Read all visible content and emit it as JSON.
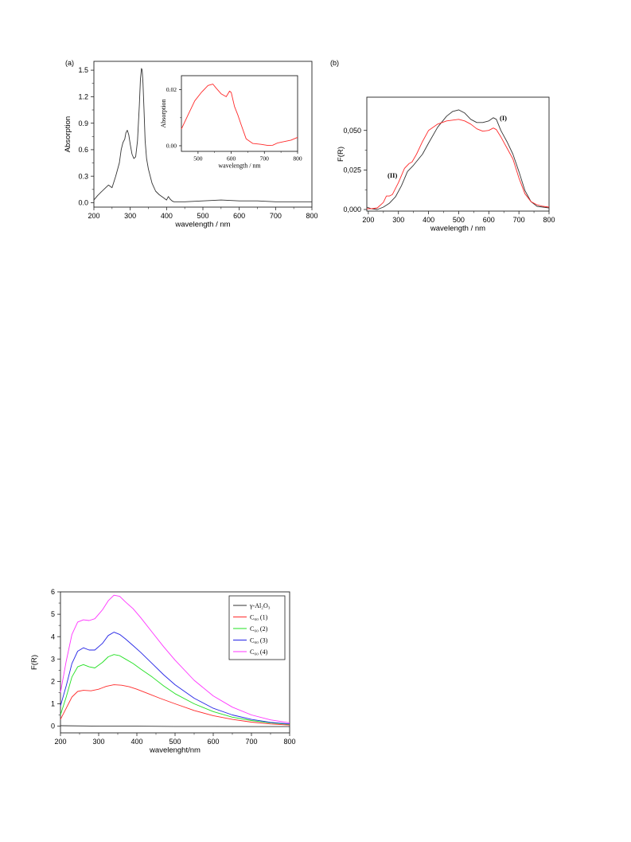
{
  "colors": {
    "black": "#333333",
    "red": "#ff2a2a",
    "green": "#22e022",
    "blue": "#2424e6",
    "magenta": "#ff33ff"
  },
  "chart_data": [
    {
      "id": "a",
      "panel_label": "(a)",
      "type": "line",
      "xlabel": "wavelength / nm",
      "ylabel": "Absorption",
      "xlim": [
        200,
        800
      ],
      "ylim": [
        -0.05,
        1.6
      ],
      "xticks": [
        "200",
        "300",
        "400",
        "500",
        "600",
        "700",
        "800"
      ],
      "yticks": [
        "0.0",
        "0.3",
        "0.6",
        "0.9",
        "1.2",
        "1.5"
      ],
      "series": [
        {
          "color": "#333333",
          "x": [
            200,
            210,
            220,
            230,
            240,
            250,
            260,
            270,
            275,
            280,
            285,
            288,
            292,
            296,
            300,
            305,
            310,
            315,
            320,
            325,
            328,
            331,
            333,
            335,
            338,
            341,
            345,
            350,
            360,
            370,
            380,
            390,
            400,
            405,
            410,
            415,
            420,
            430,
            450,
            500,
            550,
            600,
            650,
            700,
            750,
            800
          ],
          "y": [
            0.03,
            0.08,
            0.12,
            0.16,
            0.2,
            0.17,
            0.3,
            0.45,
            0.6,
            0.68,
            0.72,
            0.79,
            0.82,
            0.77,
            0.66,
            0.55,
            0.5,
            0.52,
            0.7,
            1.1,
            1.4,
            1.52,
            1.5,
            1.35,
            1.05,
            0.7,
            0.5,
            0.38,
            0.22,
            0.13,
            0.09,
            0.06,
            0.03,
            0.07,
            0.04,
            0.02,
            0.01,
            0.01,
            0.01,
            0.02,
            0.03,
            0.02,
            0.02,
            0.01,
            0.01,
            0.01
          ]
        }
      ]
    },
    {
      "id": "a-inset",
      "type": "line",
      "xlabel": "wavelength / nm",
      "ylabel": "Absorption",
      "xlim": [
        450,
        800
      ],
      "ylim": [
        -0.002,
        0.025
      ],
      "xticks": [
        "500",
        "600",
        "700",
        "800"
      ],
      "yticks": [
        "0.00",
        "0.02"
      ],
      "series": [
        {
          "color": "#ff2a2a",
          "x": [
            450,
            470,
            490,
            510,
            530,
            545,
            555,
            570,
            585,
            595,
            600,
            610,
            620,
            630,
            645,
            665,
            690,
            710,
            725,
            740,
            760,
            780,
            800
          ],
          "y": [
            0.006,
            0.011,
            0.016,
            0.019,
            0.0215,
            0.022,
            0.0205,
            0.0185,
            0.0175,
            0.0195,
            0.019,
            0.014,
            0.011,
            0.0075,
            0.0025,
            0.0008,
            0.0005,
            0.0001,
            0.0002,
            0.001,
            0.0015,
            0.002,
            0.003
          ]
        }
      ]
    },
    {
      "id": "b",
      "panel_label": "(b)",
      "type": "line",
      "xlabel": "wavelength / nm",
      "ylabel": "F(R)",
      "xlim": [
        195,
        800
      ],
      "ylim": [
        -0.001,
        0.071
      ],
      "xticks": [
        "200",
        "300",
        "400",
        "500",
        "600",
        "700",
        "800"
      ],
      "yticks": [
        "0,000",
        "0,025",
        "0,050"
      ],
      "annotations": [
        "(I)",
        "(II)"
      ],
      "series": [
        {
          "color": "#333333",
          "x": [
            195,
            210,
            230,
            250,
            270,
            290,
            310,
            330,
            350,
            380,
            400,
            430,
            460,
            480,
            500,
            520,
            540,
            560,
            580,
            600,
            615,
            625,
            640,
            660,
            680,
            700,
            720,
            740,
            760,
            780,
            800
          ],
          "y": [
            0.0015,
            0.0005,
            0.0,
            0.0015,
            0.004,
            0.008,
            0.015,
            0.024,
            0.028,
            0.035,
            0.042,
            0.052,
            0.059,
            0.062,
            0.063,
            0.061,
            0.057,
            0.055,
            0.055,
            0.056,
            0.058,
            0.057,
            0.05,
            0.043,
            0.035,
            0.024,
            0.012,
            0.005,
            0.002,
            0.0015,
            0.001
          ]
        },
        {
          "color": "#ff2a2a",
          "x": [
            195,
            210,
            230,
            250,
            260,
            270,
            280,
            300,
            320,
            335,
            345,
            360,
            380,
            400,
            430,
            460,
            480,
            500,
            520,
            540,
            560,
            580,
            600,
            615,
            625,
            640,
            660,
            680,
            700,
            720,
            740,
            760,
            780,
            800
          ],
          "y": [
            0.0005,
            0.0005,
            0.001,
            0.0045,
            0.0085,
            0.0085,
            0.0095,
            0.017,
            0.026,
            0.029,
            0.03,
            0.035,
            0.043,
            0.05,
            0.054,
            0.056,
            0.0565,
            0.057,
            0.056,
            0.054,
            0.051,
            0.0495,
            0.05,
            0.0515,
            0.0505,
            0.046,
            0.039,
            0.032,
            0.02,
            0.01,
            0.005,
            0.003,
            0.002,
            0.0015
          ]
        }
      ]
    },
    {
      "id": "c",
      "type": "line",
      "xlabel": "wavelenght/nm",
      "ylabel": "F(R)",
      "xlim": [
        200,
        800
      ],
      "ylim": [
        -0.3,
        6
      ],
      "xticks": [
        "200",
        "300",
        "400",
        "500",
        "600",
        "700",
        "800"
      ],
      "yticks": [
        "0",
        "1",
        "2",
        "3",
        "4",
        "5",
        "6"
      ],
      "legend_position": "top-right",
      "series": [
        {
          "name": "γ-Al₂O₃",
          "color": "#333333",
          "x": [
            200,
            300,
            400,
            500,
            600,
            700,
            800
          ],
          "y": [
            0.02,
            0.0,
            0.0,
            -0.01,
            -0.01,
            -0.02,
            -0.02
          ]
        },
        {
          "name": "C₆₀ (1)",
          "color": "#ff2a2a",
          "x": [
            200,
            215,
            230,
            245,
            260,
            280,
            300,
            320,
            340,
            360,
            380,
            400,
            430,
            460,
            500,
            550,
            600,
            650,
            700,
            750,
            800
          ],
          "y": [
            0.3,
            0.8,
            1.3,
            1.55,
            1.6,
            1.58,
            1.65,
            1.78,
            1.85,
            1.83,
            1.76,
            1.65,
            1.45,
            1.25,
            1.0,
            0.7,
            0.47,
            0.3,
            0.18,
            0.1,
            0.05
          ]
        },
        {
          "name": "C₆₀ (2)",
          "color": "#22e022",
          "x": [
            200,
            215,
            230,
            245,
            260,
            275,
            290,
            310,
            325,
            340,
            355,
            370,
            390,
            410,
            440,
            470,
            500,
            550,
            600,
            650,
            700,
            750,
            800
          ],
          "y": [
            0.5,
            1.3,
            2.2,
            2.65,
            2.75,
            2.65,
            2.6,
            2.85,
            3.1,
            3.2,
            3.15,
            3.0,
            2.8,
            2.55,
            2.2,
            1.8,
            1.45,
            1.0,
            0.65,
            0.4,
            0.25,
            0.15,
            0.08
          ]
        },
        {
          "name": "C₆₀ (3)",
          "color": "#2424e6",
          "x": [
            200,
            215,
            230,
            245,
            260,
            275,
            290,
            310,
            325,
            340,
            355,
            370,
            390,
            410,
            440,
            470,
            500,
            550,
            600,
            650,
            700,
            750,
            800
          ],
          "y": [
            0.9,
            1.8,
            2.8,
            3.35,
            3.5,
            3.4,
            3.4,
            3.7,
            4.05,
            4.2,
            4.1,
            3.9,
            3.6,
            3.3,
            2.8,
            2.3,
            1.85,
            1.25,
            0.8,
            0.5,
            0.3,
            0.17,
            0.1
          ]
        },
        {
          "name": "C₆₀ (4)",
          "color": "#ff33ff",
          "x": [
            200,
            215,
            230,
            245,
            260,
            275,
            290,
            310,
            325,
            340,
            355,
            370,
            390,
            410,
            440,
            470,
            500,
            550,
            600,
            650,
            700,
            750,
            800
          ],
          "y": [
            1.5,
            2.9,
            4.1,
            4.65,
            4.75,
            4.72,
            4.8,
            5.2,
            5.6,
            5.85,
            5.8,
            5.55,
            5.25,
            4.85,
            4.2,
            3.55,
            2.95,
            2.05,
            1.35,
            0.85,
            0.5,
            0.28,
            0.15
          ]
        }
      ]
    }
  ]
}
